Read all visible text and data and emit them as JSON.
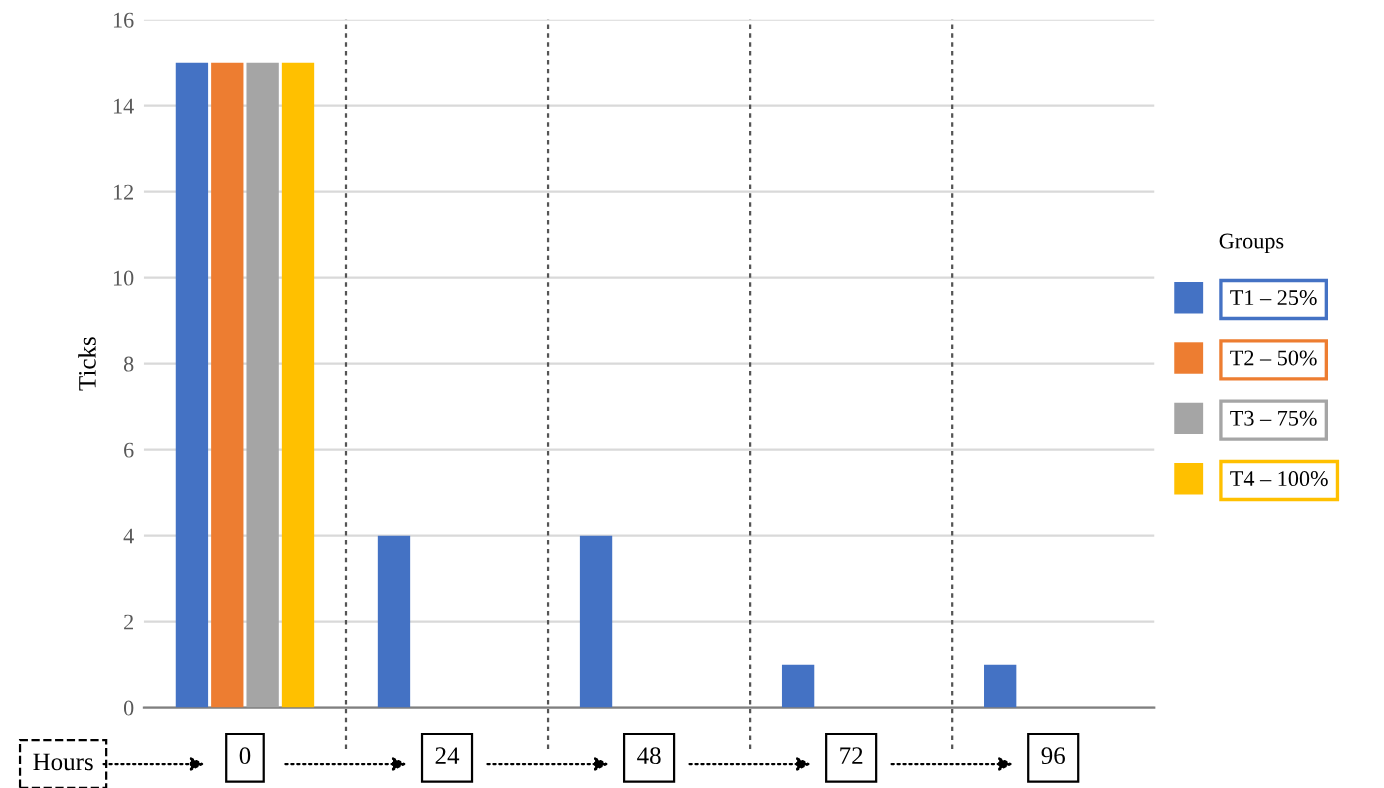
{
  "chart_data": {
    "type": "bar",
    "ylabel": "Ticks",
    "xlabel": "Hours",
    "legend_title": "Groups",
    "categories": [
      "0",
      "24",
      "48",
      "72",
      "96"
    ],
    "series": [
      {
        "name": "T1 – 25%",
        "color": "#4472c4",
        "values": [
          15,
          4,
          4,
          1,
          1
        ]
      },
      {
        "name": "T2 – 50%",
        "color": "#ed7d31",
        "values": [
          15,
          null,
          null,
          null,
          null
        ]
      },
      {
        "name": "T3 – 75%",
        "color": "#a5a5a5",
        "values": [
          15,
          null,
          null,
          null,
          null
        ]
      },
      {
        "name": "T4 – 100%",
        "color": "#ffc000",
        "values": [
          15,
          null,
          null,
          null,
          null
        ]
      }
    ],
    "ylim": [
      0,
      16
    ],
    "yticks": [
      0,
      2,
      4,
      6,
      8,
      10,
      12,
      14,
      16
    ],
    "grid": "y",
    "legend": "right"
  }
}
